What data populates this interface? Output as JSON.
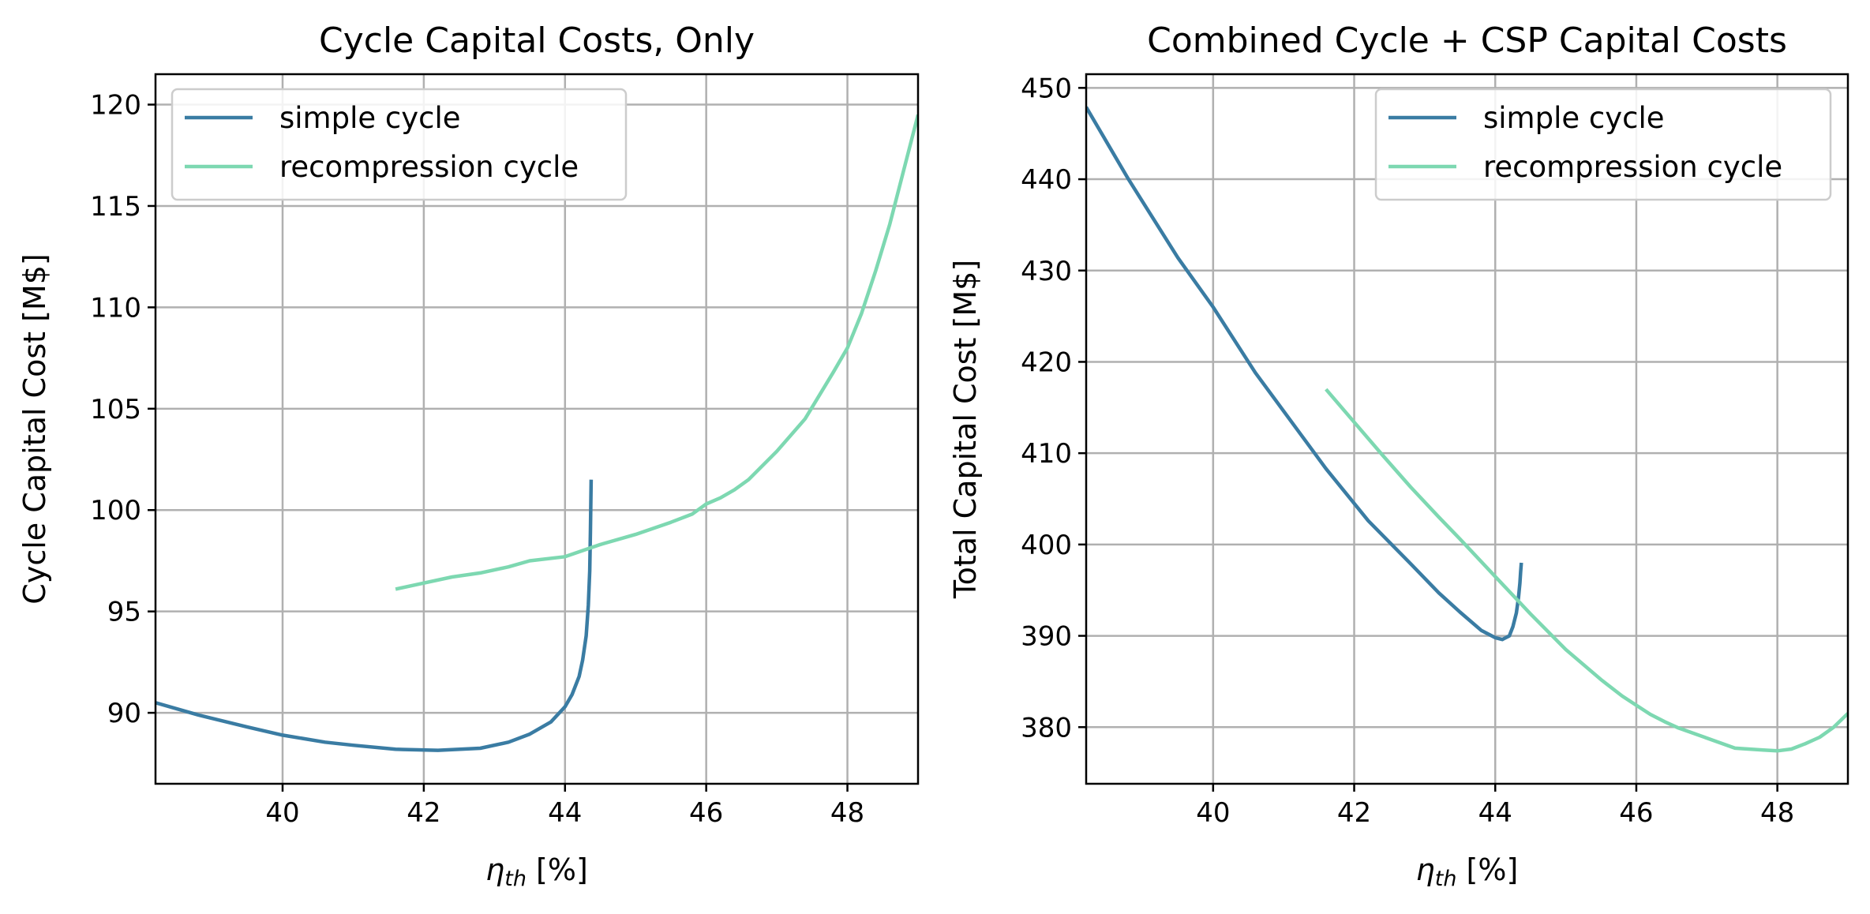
{
  "chart_data": [
    {
      "type": "line",
      "title": "Cycle Capital Costs, Only",
      "xlabel_main": "η",
      "xlabel_sub": "th",
      "xlabel_unit": " [%]",
      "ylabel": "Cycle Capital Cost [M$]",
      "xlim": [
        38.2,
        49.0
      ],
      "ylim": [
        86.5,
        121.5
      ],
      "xticks": [
        40,
        42,
        44,
        46,
        48
      ],
      "yticks": [
        90,
        95,
        100,
        105,
        110,
        115,
        120
      ],
      "grid": true,
      "legend_position": "top-left",
      "series": [
        {
          "name": "simple cycle",
          "color": "#3a7ca3",
          "x": [
            38.2,
            38.8,
            39.5,
            40.0,
            40.6,
            41.0,
            41.6,
            42.2,
            42.8,
            43.2,
            43.5,
            43.8,
            44.0,
            44.1,
            44.2,
            44.25,
            44.3,
            44.33,
            44.35,
            44.36,
            44.37
          ],
          "y": [
            90.5,
            89.9,
            89.3,
            88.9,
            88.55,
            88.4,
            88.2,
            88.15,
            88.25,
            88.55,
            88.95,
            89.55,
            90.3,
            90.9,
            91.8,
            92.6,
            93.8,
            95.3,
            97.0,
            99.0,
            101.5
          ]
        },
        {
          "name": "recompression cycle",
          "color": "#7dd8b1",
          "x": [
            41.6,
            42.0,
            42.4,
            42.8,
            43.2,
            43.5,
            44.0,
            44.5,
            45.0,
            45.5,
            45.8,
            46.0,
            46.2,
            46.4,
            46.6,
            47.0,
            47.4,
            47.8,
            48.0,
            48.2,
            48.4,
            48.6,
            48.8,
            49.0
          ],
          "y": [
            96.1,
            96.4,
            96.7,
            96.9,
            97.2,
            97.5,
            97.7,
            98.3,
            98.8,
            99.4,
            99.8,
            100.3,
            100.6,
            101.0,
            101.5,
            102.9,
            104.5,
            106.8,
            108.0,
            109.7,
            111.8,
            114.1,
            116.8,
            119.5
          ]
        }
      ]
    },
    {
      "type": "line",
      "title": "Combined Cycle + CSP Capital Costs",
      "xlabel_main": "η",
      "xlabel_sub": "th",
      "xlabel_unit": " [%]",
      "ylabel": "Total Capital Cost [M$]",
      "xlim": [
        38.2,
        49.0
      ],
      "ylim": [
        373.8,
        451.5
      ],
      "xticks": [
        40,
        42,
        44,
        46,
        48
      ],
      "yticks": [
        380,
        390,
        400,
        410,
        420,
        430,
        440,
        450
      ],
      "grid": true,
      "legend_position": "top-right",
      "series": [
        {
          "name": "simple cycle",
          "color": "#3a7ca3",
          "x": [
            38.2,
            38.8,
            39.5,
            40.0,
            40.6,
            41.0,
            41.6,
            42.2,
            42.8,
            43.2,
            43.5,
            43.8,
            44.0,
            44.1,
            44.2,
            44.25,
            44.3,
            44.33,
            44.35,
            44.36,
            44.37
          ],
          "y": [
            447.9,
            440.0,
            431.4,
            426.0,
            418.8,
            414.6,
            408.3,
            402.6,
            397.9,
            394.7,
            392.6,
            390.6,
            389.8,
            389.6,
            390.0,
            391.0,
            392.5,
            394.2,
            395.8,
            397.0,
            398.0
          ]
        },
        {
          "name": "recompression cycle",
          "color": "#7dd8b1",
          "x": [
            41.6,
            42.0,
            42.4,
            42.8,
            43.2,
            43.5,
            44.0,
            44.5,
            45.0,
            45.5,
            45.8,
            46.0,
            46.2,
            46.4,
            46.6,
            47.0,
            47.4,
            47.8,
            48.0,
            48.2,
            48.4,
            48.6,
            48.8,
            49.0
          ],
          "y": [
            417.0,
            413.4,
            409.8,
            406.3,
            403.0,
            400.6,
            396.5,
            392.4,
            388.5,
            385.2,
            383.4,
            382.4,
            381.4,
            380.6,
            379.9,
            378.8,
            377.7,
            377.5,
            377.4,
            377.6,
            378.2,
            378.9,
            380.0,
            381.5
          ]
        }
      ]
    }
  ]
}
